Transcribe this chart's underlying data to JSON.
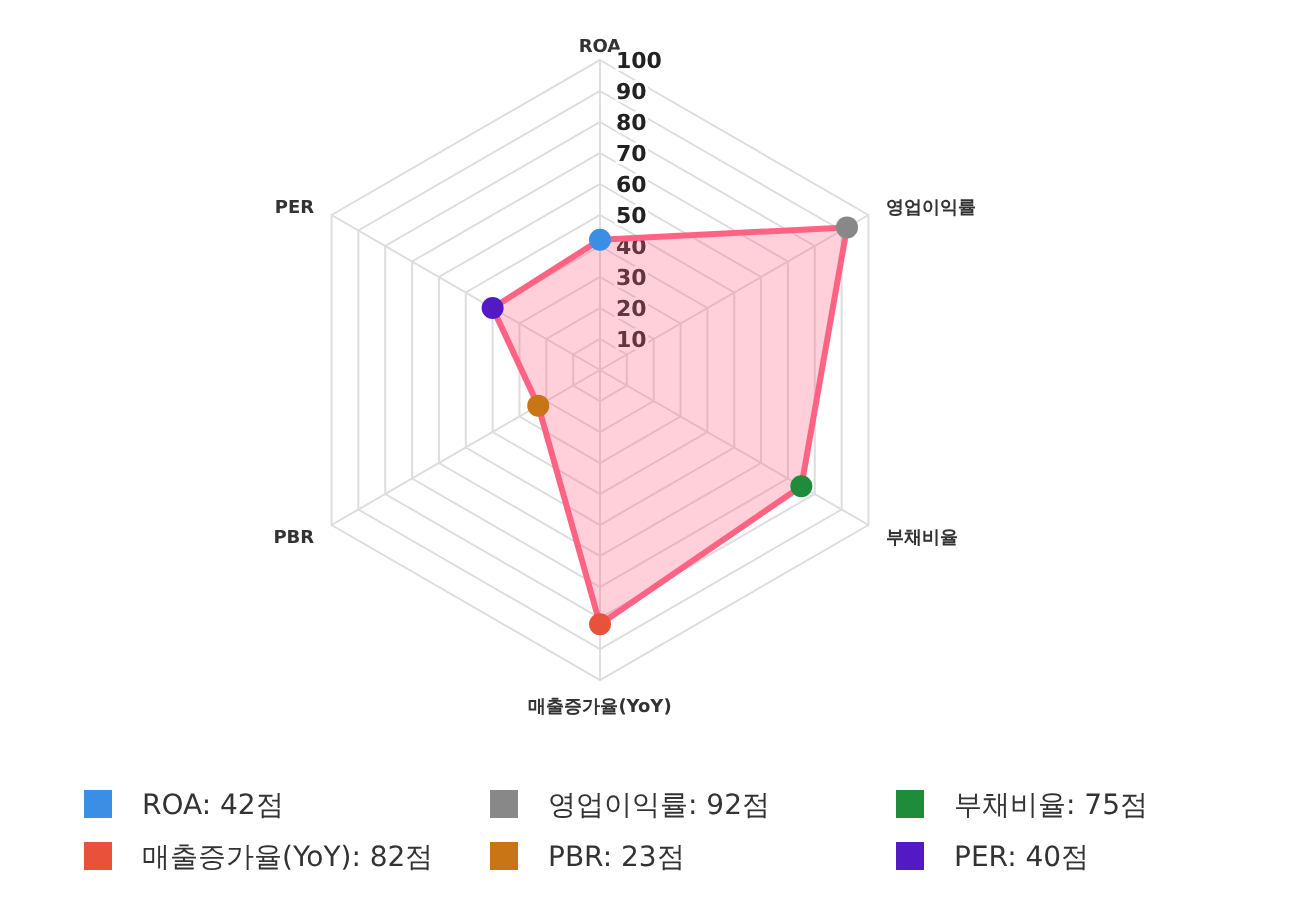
{
  "chart_data": {
    "type": "radar",
    "categories": [
      "ROA",
      "영업이익률",
      "부채비율",
      "매출증가율(YoY)",
      "PBR",
      "PER"
    ],
    "series": [
      {
        "color": "#ff6384",
        "values": [
          42,
          92,
          75,
          82,
          23,
          40
        ],
        "colors": [
          "#3a8ee6",
          "#888888",
          "#1e8c3a",
          "#e8523a",
          "#c87517",
          "#5319c4"
        ]
      }
    ],
    "annotations": [
      "ROA: 42점",
      "영업이익률: 92점",
      "부채비율: 75점",
      "매출증가율(YoY): 82점",
      "PBR: 23점",
      "PER: 40점"
    ],
    "ylim": [
      0,
      100
    ],
    "yticks": [
      10,
      20,
      30,
      40,
      50,
      60,
      70,
      80,
      90,
      100
    ],
    "marker": "circle",
    "grid": true
  }
}
